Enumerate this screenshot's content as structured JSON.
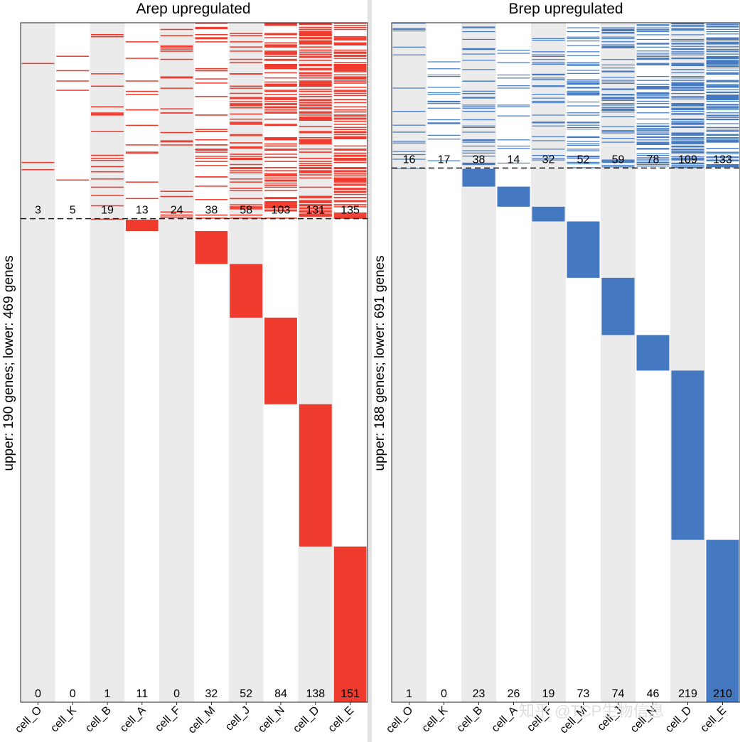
{
  "chart_data": [
    {
      "type": "heatmap",
      "title": "Arep upregulated",
      "ylabel": "upper: 190 genes; lower: 469 genes",
      "categories": [
        "cell_O",
        "cell_K",
        "cell_B",
        "cell_A",
        "cell_F",
        "cell_M",
        "cell_J",
        "cell_N",
        "cell_D",
        "cell_E"
      ],
      "color": "#ee3b2e",
      "upper_total_genes": 190,
      "lower_total_genes": 469,
      "upper_counts": [
        3,
        5,
        19,
        13,
        24,
        38,
        58,
        103,
        131,
        135
      ],
      "lower_counts": [
        0,
        0,
        1,
        11,
        0,
        32,
        52,
        84,
        138,
        151
      ]
    },
    {
      "type": "heatmap",
      "title": "Brep upregulated",
      "ylabel": "upper: 188 genes; lower: 691 genes",
      "categories": [
        "cell_O",
        "cell_K",
        "cell_B",
        "cell_A",
        "cell_F",
        "cell_M",
        "cell_J",
        "cell_N",
        "cell_D",
        "cell_E"
      ],
      "color": "#4479c1",
      "upper_total_genes": 188,
      "lower_total_genes": 691,
      "upper_counts": [
        16,
        17,
        38,
        14,
        32,
        52,
        59,
        78,
        109,
        133
      ],
      "lower_counts": [
        1,
        0,
        23,
        26,
        19,
        73,
        74,
        46,
        219,
        210
      ]
    }
  ],
  "watermark": "知乎 @TCP生物信息"
}
